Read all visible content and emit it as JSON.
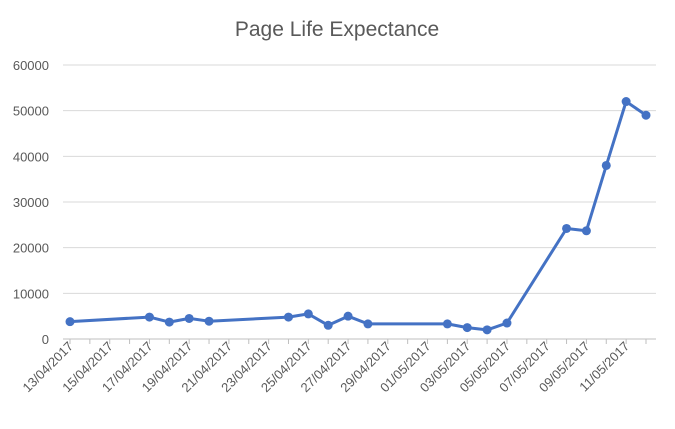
{
  "chart_data": {
    "type": "line",
    "title": "Page Life Expectance",
    "xlabel": "",
    "ylabel": "",
    "ylim": [
      0,
      60000
    ],
    "yticks": [
      0,
      10000,
      20000,
      30000,
      40000,
      50000,
      60000
    ],
    "xlim": [
      "2017-04-13",
      "2017-05-12"
    ],
    "xticks": [
      "13/04/2017",
      "15/04/2017",
      "17/04/2017",
      "19/04/2017",
      "21/04/2017",
      "23/04/2017",
      "25/04/2017",
      "27/04/2017",
      "29/04/2017",
      "01/05/2017",
      "03/05/2017",
      "05/05/2017",
      "07/05/2017",
      "09/05/2017",
      "11/05/2017"
    ],
    "grid": true,
    "legend": "none",
    "color": "#4472c4",
    "series": [
      {
        "x": [
          "2017-04-13",
          "2017-04-17",
          "2017-04-18",
          "2017-04-19",
          "2017-04-20",
          "2017-04-24",
          "2017-04-25",
          "2017-04-26",
          "2017-04-27",
          "2017-04-28",
          "2017-05-02",
          "2017-05-03",
          "2017-05-04",
          "2017-05-05",
          "2017-05-08",
          "2017-05-09",
          "2017-05-10",
          "2017-05-11",
          "2017-05-12"
        ],
        "values": [
          3800,
          4800,
          3700,
          4500,
          3900,
          4800,
          5500,
          3000,
          5000,
          3300,
          3300,
          2500,
          2000,
          3500,
          24200,
          23700,
          38000,
          52000,
          49000
        ]
      }
    ]
  }
}
